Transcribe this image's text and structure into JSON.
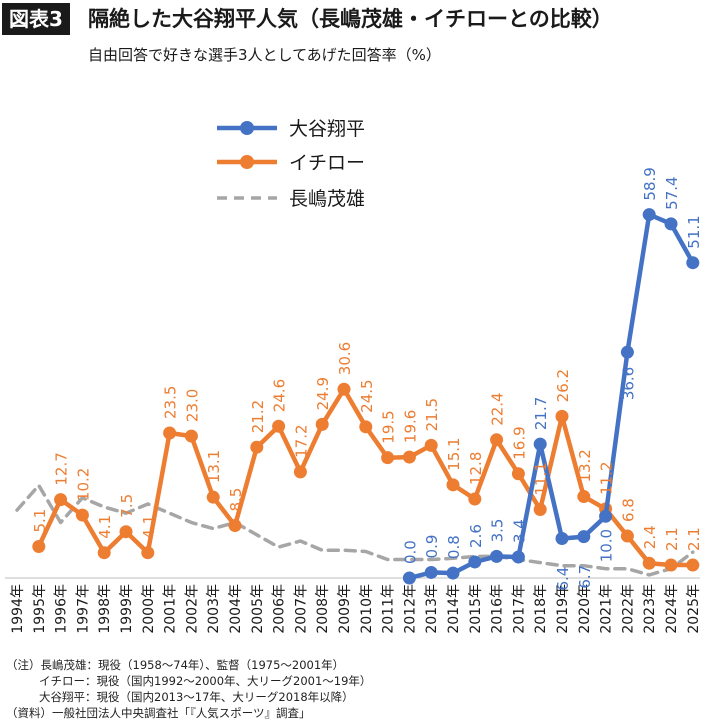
{
  "header": {
    "badge": "図表3",
    "title": "隔絶した大谷翔平人気（長嶋茂雄・イチローとの比較）",
    "subtitle": "自由回答で好きな選手3人としてあげた回答率（%）"
  },
  "notes": [
    "（注）長嶋茂雄：現役（1958〜74年）、監督（1975〜2001年）",
    "イチロー：現役（国内1992〜2000年、大リーグ2001〜19年）",
    "大谷翔平：現役（国内2013〜17年、大リーグ2018年以降）",
    "（資料）一般社団法人中央調査社「『人気スポーツ』調査」"
  ],
  "chart_data": {
    "type": "line",
    "title": "",
    "xlabel": "",
    "ylabel": "",
    "ylim": [
      0,
      70
    ],
    "grid": false,
    "legend_position": "top-center",
    "categories": [
      "1994年",
      "1995年",
      "1996年",
      "1997年",
      "1998年",
      "1999年",
      "2000年",
      "2001年",
      "2002年",
      "2003年",
      "2004年",
      "2005年",
      "2006年",
      "2007年",
      "2008年",
      "2009年",
      "2010年",
      "2011年",
      "2012年",
      "2013年",
      "2014年",
      "2015年",
      "2016年",
      "2017年",
      "2018年",
      "2019年",
      "2020年",
      "2021年",
      "2022年",
      "2023年",
      "2024年",
      "2025年"
    ],
    "series": [
      {
        "name": "大谷翔平",
        "color": "#4472c4",
        "style": "solid",
        "values": [
          null,
          null,
          null,
          null,
          null,
          null,
          null,
          null,
          null,
          null,
          null,
          null,
          null,
          null,
          null,
          null,
          null,
          null,
          0.0,
          0.9,
          0.8,
          2.6,
          3.5,
          3.4,
          21.7,
          6.4,
          6.7,
          10.0,
          36.6,
          58.9,
          57.4,
          51.1
        ],
        "labels": [
          null,
          null,
          null,
          null,
          null,
          null,
          null,
          null,
          null,
          null,
          null,
          null,
          null,
          null,
          null,
          null,
          null,
          null,
          "0.0",
          "0.9",
          "0.8",
          "2.6",
          "3.5",
          "3.4",
          "21.7",
          "6.4",
          "6.7",
          "10.0",
          "36.6",
          "58.9",
          "57.4",
          "51.1"
        ]
      },
      {
        "name": "イチロー",
        "color": "#ed7d31",
        "style": "solid",
        "values": [
          null,
          5.1,
          12.7,
          10.2,
          4.1,
          7.5,
          4.1,
          23.5,
          23.0,
          13.1,
          8.5,
          21.2,
          24.6,
          17.2,
          24.9,
          30.6,
          24.5,
          19.5,
          19.6,
          21.5,
          15.1,
          12.8,
          22.4,
          16.9,
          11.1,
          26.2,
          13.2,
          11.2,
          6.8,
          2.4,
          2.1,
          2.1
        ],
        "labels": [
          null,
          "5.1",
          "12.7",
          "10.2",
          "4.1",
          "7.5",
          "4.1",
          "23.5",
          "23.0",
          "13.1",
          "8.5",
          "21.2",
          "24.6",
          "17.2",
          "24.9",
          "30.6",
          "24.5",
          "19.5",
          "19.6",
          "21.5",
          "15.1",
          "12.8",
          "22.4",
          "16.9",
          "11.1",
          "26.2",
          "13.2",
          "11.2",
          "6.8",
          "2.4",
          "2.1",
          "2.1"
        ]
      },
      {
        "name": "長嶋茂雄",
        "color": "#a6a6a6",
        "style": "dashed",
        "values": [
          11,
          15,
          9,
          13,
          11.5,
          10.5,
          12,
          10.5,
          9,
          8,
          9,
          7,
          5,
          6,
          4.5,
          4.5,
          4.3,
          3,
          3,
          3,
          3.2,
          3.5,
          3.5,
          3,
          2.5,
          2,
          2,
          1.5,
          1.5,
          0.5,
          1.5,
          4.2
        ],
        "labels": []
      }
    ]
  }
}
